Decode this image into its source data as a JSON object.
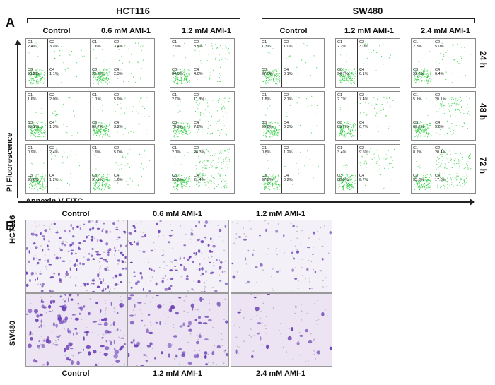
{
  "panel_a": {
    "letter": "A",
    "groups": [
      {
        "name": "HCT116",
        "conditions": [
          "Control",
          "0.6 mM AMI-1",
          "1.2 mM AMI-1"
        ]
      },
      {
        "name": "SW480",
        "conditions": [
          "Control",
          "1.2 mM AMI-1",
          "2.4 mM AMI-1"
        ]
      }
    ],
    "time_labels": [
      "24 h",
      "48 h",
      "72 h"
    ],
    "y_axis_label": "PI Fluorescence",
    "x_axis_label": "Annexin V-FITC",
    "quadrant_names": [
      "C1",
      "C2",
      "C3",
      "C4"
    ],
    "plots": [
      [
        {
          "c1": "2.4%",
          "c2": "3.3%",
          "c3": "93.2%",
          "c4": "1.1%"
        },
        {
          "c1": "1.6%",
          "c2": "3.4%",
          "c3": "92.7%",
          "c4": "2.3%"
        },
        {
          "c1": "2.9%",
          "c2": "8.5%",
          "c3": "84.6%",
          "c4": "4.0%"
        },
        {
          "c1": "1.3%",
          "c2": "1.0%",
          "c3": "97.6%",
          "c4": "0.1%"
        },
        {
          "c1": "2.2%",
          "c2": "3.0%",
          "c3": "94.7%",
          "c4": "0.1%"
        },
        {
          "c1": "2.3%",
          "c2": "5.0%",
          "c3": "92.2%",
          "c4": "0.4%"
        }
      ],
      [
        {
          "c1": "1.6%",
          "c2": "2.0%",
          "c3": "95.1%",
          "c4": "1.3%"
        },
        {
          "c1": "1.1%",
          "c2": "5.9%",
          "c3": "89.7%",
          "c4": "3.2%"
        },
        {
          "c1": "2.0%",
          "c2": "11.8%",
          "c3": "78.3%",
          "c4": "7.8%"
        },
        {
          "c1": "1.8%",
          "c2": "2.1%",
          "c3": "95.8%",
          "c4": "0.3%"
        },
        {
          "c1": "2.1%",
          "c2": "7.4%",
          "c3": "89.7%",
          "c4": "0.7%"
        },
        {
          "c1": "5.1%",
          "c2": "20.1%",
          "c3": "69.2%",
          "c4": "5.6%"
        }
      ],
      [
        {
          "c1": "0.9%",
          "c2": "2.4%",
          "c3": "95.6%",
          "c4": "1.2%"
        },
        {
          "c1": "1.9%",
          "c2": "5.0%",
          "c3": "91.5%",
          "c4": "1.6%"
        },
        {
          "c1": "2.1%",
          "c2": "24.3%",
          "c3": "52.2%",
          "c4": "21.4%"
        },
        {
          "c1": "0.8%",
          "c2": "1.2%",
          "c3": "97.8%",
          "c4": "0.2%"
        },
        {
          "c1": "3.4%",
          "c2": "9.6%",
          "c3": "86.3%",
          "c4": "0.7%"
        },
        {
          "c1": "8.2%",
          "c2": "20.4%",
          "c3": "53.8%",
          "c4": "17.6%"
        }
      ]
    ],
    "dot_color": "#2ecc40"
  },
  "panel_b": {
    "letter": "B",
    "top_titles": [
      "Control",
      "0.6 mM AMI-1",
      "1.2 mM AMI-1"
    ],
    "bottom_titles": [
      "Control",
      "1.2 mM AMI-1",
      "2.4 mM AMI-1"
    ],
    "row_labels": [
      "HCT116",
      "SW480"
    ],
    "stain_color": "#6a3fb5"
  }
}
